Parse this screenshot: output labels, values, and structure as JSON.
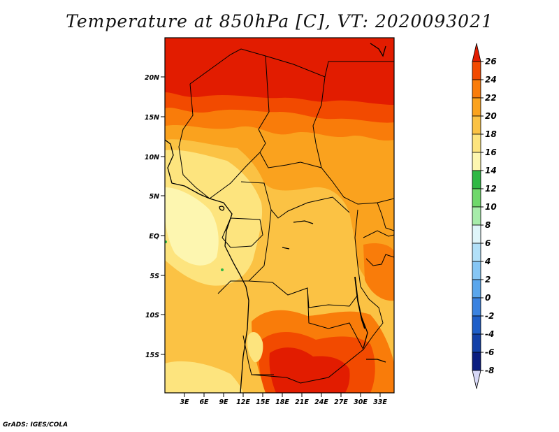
{
  "title": "Temperature at 850hPa [C], VT: 2020093021",
  "footer": "GrADS: IGES/COLA",
  "map": {
    "lat_labels": [
      "20N",
      "15N",
      "10N",
      "5N",
      "EQ",
      "5S",
      "10S",
      "15S"
    ],
    "lon_labels": [
      "3E",
      "6E",
      "9E",
      "12E",
      "15E",
      "18E",
      "21E",
      "24E",
      "27E",
      "30E",
      "33E"
    ]
  },
  "colorbar": {
    "labels": [
      "26",
      "24",
      "22",
      "20",
      "18",
      "16",
      "14",
      "12",
      "10",
      "8",
      "6",
      "4",
      "2",
      "0",
      "-2",
      "-4",
      "-6",
      "-8"
    ],
    "colors": [
      "#e21c00",
      "#f24a00",
      "#f97c0a",
      "#faa21e",
      "#fbc244",
      "#fde47e",
      "#fdf6b0",
      "#2fb844",
      "#6fd86b",
      "#a7ecaa",
      "#dff5f9",
      "#b2e0f8",
      "#86c6f4",
      "#5aa6ec",
      "#3a82e0",
      "#1e5ec8",
      "#1240a8",
      "#0a1d80",
      "#d7d8f6"
    ]
  }
}
